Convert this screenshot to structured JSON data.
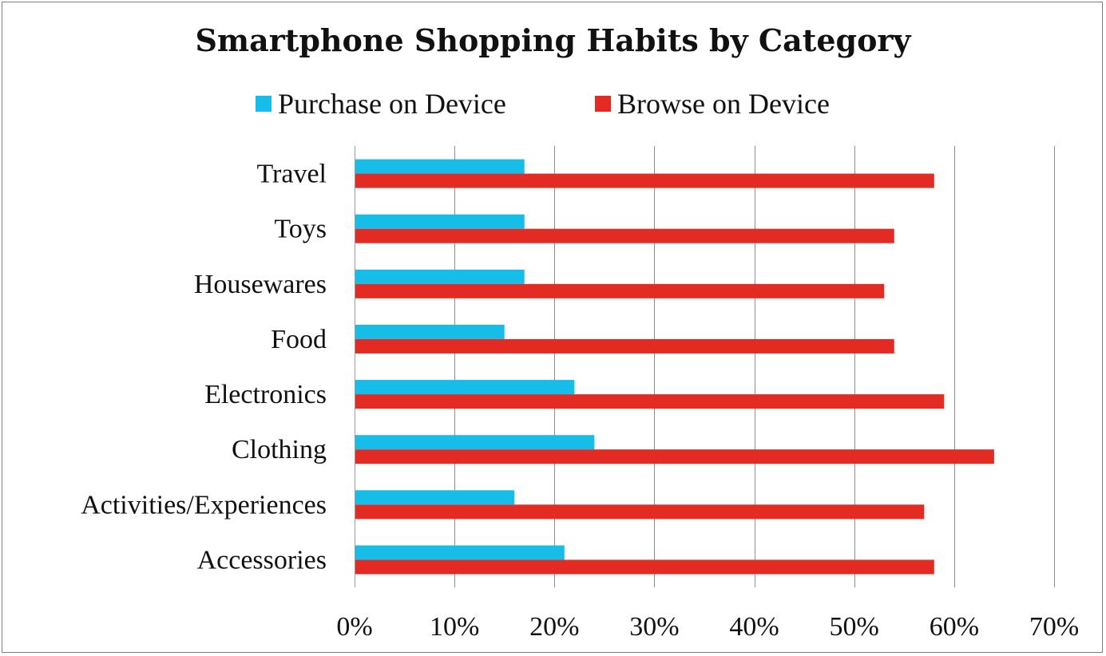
{
  "chart_data": {
    "type": "bar",
    "orientation": "horizontal",
    "title": "Smartphone Shopping Habits by Category",
    "categories": [
      "Travel",
      "Toys",
      "Housewares",
      "Food",
      "Electronics",
      "Clothing",
      "Activities/Experiences",
      "Accessories"
    ],
    "series": [
      {
        "name": "Purchase on Device",
        "color": "#17BDE9",
        "values": [
          17,
          17,
          17,
          15,
          22,
          24,
          16,
          21
        ]
      },
      {
        "name": "Browse on Device",
        "color": "#E32B23",
        "values": [
          58,
          54,
          53,
          54,
          59,
          64,
          57,
          58
        ]
      }
    ],
    "xlim": [
      0,
      70
    ],
    "x_ticks": [
      "0%",
      "10%",
      "20%",
      "30%",
      "40%",
      "50%",
      "60%",
      "70%"
    ],
    "value_unit": "%",
    "grid": "vertical",
    "legend_position": "top"
  }
}
